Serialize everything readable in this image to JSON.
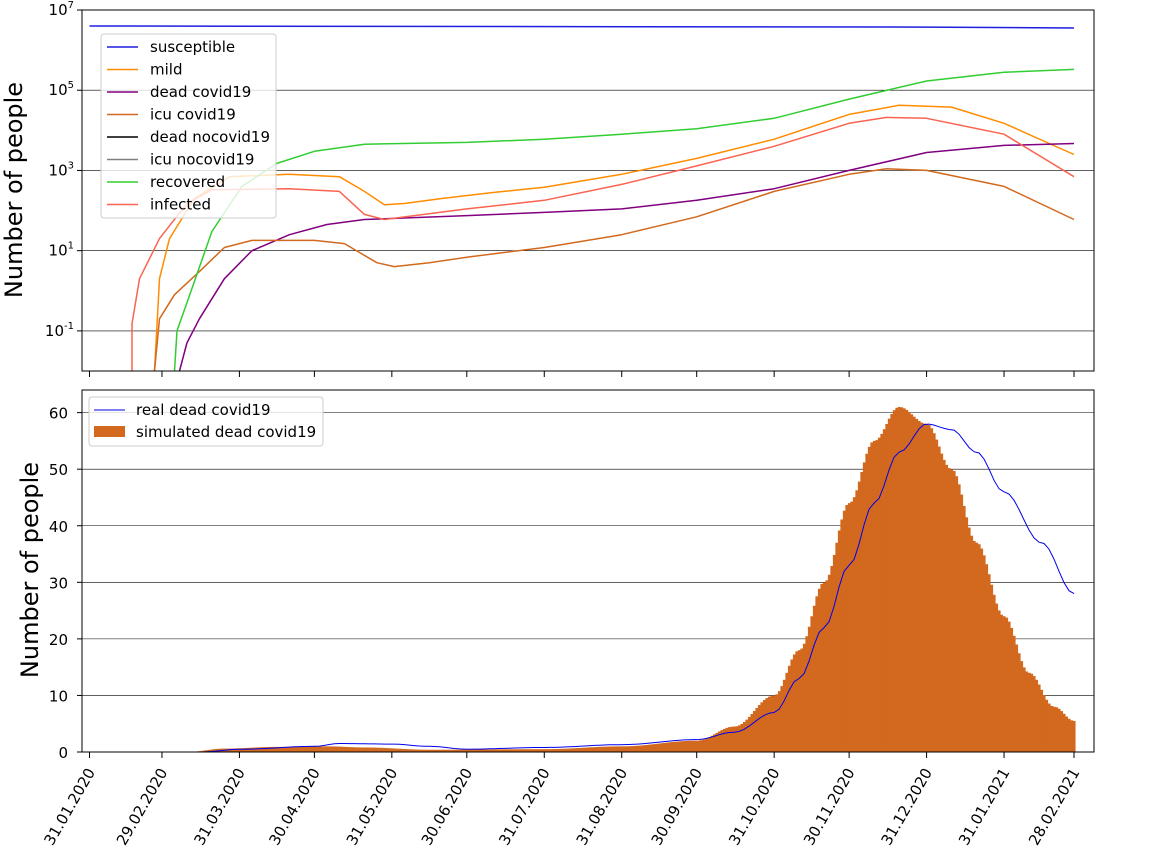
{
  "chart_data": [
    {
      "type": "line",
      "ylabel": "Number of people",
      "yscale": "log",
      "ylim": [
        0.01,
        10000000
      ],
      "xlim": [
        "2020-01-28",
        "2021-03-08"
      ],
      "grid": "y-major",
      "legend_position": "upper-left",
      "y_tick_labels": [
        "10^-1",
        "10^1",
        "10^3",
        "10^5",
        "10^7"
      ],
      "series": [
        {
          "name": "susceptible",
          "color": "#1f1fe0",
          "points": [
            [
              "2020-01-31",
              4000000
            ],
            [
              "2020-12-31",
              3750000
            ],
            [
              "2021-02-28",
              3550000
            ]
          ]
        },
        {
          "name": "mild",
          "color": "#ff8c00",
          "points": [
            [
              "2020-02-26",
              0.01
            ],
            [
              "2020-02-28",
              2
            ],
            [
              "2020-03-03",
              20
            ],
            [
              "2020-03-13",
              200
            ],
            [
              "2020-03-27",
              700
            ],
            [
              "2020-04-20",
              800
            ],
            [
              "2020-05-10",
              700
            ],
            [
              "2020-05-20",
              300
            ],
            [
              "2020-05-28",
              140
            ],
            [
              "2020-06-05",
              150
            ],
            [
              "2020-06-20",
              200
            ],
            [
              "2020-07-10",
              280
            ],
            [
              "2020-07-31",
              380
            ],
            [
              "2020-08-31",
              800
            ],
            [
              "2020-09-30",
              2000
            ],
            [
              "2020-10-31",
              6000
            ],
            [
              "2020-11-30",
              25000
            ],
            [
              "2020-12-20",
              42000
            ],
            [
              "2021-01-10",
              38000
            ],
            [
              "2021-01-31",
              15000
            ],
            [
              "2021-02-28",
              2500
            ]
          ]
        },
        {
          "name": "dead covid19",
          "color": "#800080",
          "points": [
            [
              "2020-03-07",
              0.01
            ],
            [
              "2020-03-10",
              0.05
            ],
            [
              "2020-03-15",
              0.2
            ],
            [
              "2020-03-25",
              2
            ],
            [
              "2020-04-05",
              10
            ],
            [
              "2020-04-20",
              25
            ],
            [
              "2020-05-05",
              45
            ],
            [
              "2020-05-20",
              60
            ],
            [
              "2020-06-30",
              75
            ],
            [
              "2020-07-31",
              90
            ],
            [
              "2020-08-31",
              110
            ],
            [
              "2020-09-30",
              180
            ],
            [
              "2020-10-31",
              350
            ],
            [
              "2020-11-30",
              1000
            ],
            [
              "2020-12-31",
              2800
            ],
            [
              "2021-01-31",
              4200
            ],
            [
              "2021-02-28",
              4700
            ]
          ]
        },
        {
          "name": "icu covid19",
          "color": "#d2691e",
          "points": [
            [
              "2020-02-26",
              0.01
            ],
            [
              "2020-02-28",
              0.2
            ],
            [
              "2020-03-05",
              0.8
            ],
            [
              "2020-03-15",
              3
            ],
            [
              "2020-03-25",
              12
            ],
            [
              "2020-04-05",
              18
            ],
            [
              "2020-04-30",
              18
            ],
            [
              "2020-05-12",
              15
            ],
            [
              "2020-05-25",
              5
            ],
            [
              "2020-06-01",
              4
            ],
            [
              "2020-06-15",
              5
            ],
            [
              "2020-07-01",
              7
            ],
            [
              "2020-07-31",
              12
            ],
            [
              "2020-08-31",
              25
            ],
            [
              "2020-09-30",
              70
            ],
            [
              "2020-10-31",
              300
            ],
            [
              "2020-11-30",
              800
            ],
            [
              "2020-12-15",
              1100
            ],
            [
              "2020-12-31",
              1000
            ],
            [
              "2021-01-31",
              400
            ],
            [
              "2021-02-28",
              60
            ]
          ]
        },
        {
          "name": "dead nocovid19",
          "color": "#000000",
          "points": []
        },
        {
          "name": "icu nocovid19",
          "color": "#808080",
          "points": []
        },
        {
          "name": "recovered",
          "color": "#32cd32",
          "points": [
            [
              "2020-03-05",
              0.01
            ],
            [
              "2020-03-06",
              0.1
            ],
            [
              "2020-03-10",
              0.5
            ],
            [
              "2020-03-20",
              30
            ],
            [
              "2020-04-01",
              400
            ],
            [
              "2020-04-15",
              1500
            ],
            [
              "2020-04-30",
              3000
            ],
            [
              "2020-05-20",
              4500
            ],
            [
              "2020-06-30",
              5000
            ],
            [
              "2020-07-31",
              6000
            ],
            [
              "2020-08-31",
              8000
            ],
            [
              "2020-09-30",
              11000
            ],
            [
              "2020-10-31",
              20000
            ],
            [
              "2020-11-30",
              60000
            ],
            [
              "2020-12-31",
              170000
            ],
            [
              "2021-01-31",
              280000
            ],
            [
              "2021-02-28",
              330000
            ]
          ]
        },
        {
          "name": "infected",
          "color": "#fa6450",
          "points": [
            [
              "2020-02-17",
              0.01
            ],
            [
              "2020-02-17",
              0.15
            ],
            [
              "2020-02-20",
              2
            ],
            [
              "2020-02-28",
              20
            ],
            [
              "2020-03-10",
              150
            ],
            [
              "2020-03-20",
              330
            ],
            [
              "2020-04-20",
              350
            ],
            [
              "2020-05-10",
              300
            ],
            [
              "2020-05-20",
              80
            ],
            [
              "2020-05-28",
              60
            ],
            [
              "2020-06-30",
              110
            ],
            [
              "2020-07-31",
              180
            ],
            [
              "2020-08-31",
              450
            ],
            [
              "2020-09-30",
              1300
            ],
            [
              "2020-10-31",
              4000
            ],
            [
              "2020-11-30",
              15000
            ],
            [
              "2020-12-15",
              21000
            ],
            [
              "2020-12-31",
              20000
            ],
            [
              "2021-01-31",
              8000
            ],
            [
              "2021-02-28",
              700
            ]
          ]
        }
      ]
    },
    {
      "type": "bar",
      "ylabel": "Number of people",
      "ylim": [
        0,
        64
      ],
      "xlim": [
        "2020-01-28",
        "2021-03-08"
      ],
      "y_ticks": [
        0,
        10,
        20,
        30,
        40,
        50,
        60
      ],
      "grid": "y-major",
      "legend_position": "upper-left",
      "x_tick_labels": [
        "31.01.2020",
        "29.02.2020",
        "31.03.2020",
        "30.04.2020",
        "31.05.2020",
        "30.06.2020",
        "31.07.2020",
        "31.08.2020",
        "30.09.2020",
        "31.10.2020",
        "30.11.2020",
        "31.12.2020",
        "31.01.2021",
        "28.02.2021"
      ],
      "series": [
        {
          "name": "real dead covid19",
          "type": "line",
          "color": "#0000ee",
          "points": [
            [
              "2020-01-31",
              0
            ],
            [
              "2020-03-15",
              0
            ],
            [
              "2020-04-01",
              0.5
            ],
            [
              "2020-04-30",
              1
            ],
            [
              "2020-05-10",
              1.5
            ],
            [
              "2020-05-31",
              1.4
            ],
            [
              "2020-06-15",
              1
            ],
            [
              "2020-06-30",
              0.5
            ],
            [
              "2020-07-31",
              0.8
            ],
            [
              "2020-08-31",
              1.3
            ],
            [
              "2020-09-30",
              2.2
            ],
            [
              "2020-10-15",
              3.5
            ],
            [
              "2020-10-31",
              7
            ],
            [
              "2020-11-10",
              13
            ],
            [
              "2020-11-20",
              22
            ],
            [
              "2020-11-30",
              33
            ],
            [
              "2020-12-10",
              44
            ],
            [
              "2020-12-20",
              53
            ],
            [
              "2020-12-31",
              58
            ],
            [
              "2021-01-10",
              57
            ],
            [
              "2021-01-20",
              53
            ],
            [
              "2021-01-31",
              46
            ],
            [
              "2021-02-15",
              37
            ],
            [
              "2021-02-28",
              28
            ]
          ]
        },
        {
          "name": "simulated dead covid19",
          "type": "bar",
          "color": "#d2691e",
          "points": [
            [
              "2020-01-31",
              0
            ],
            [
              "2020-03-10",
              0
            ],
            [
              "2020-03-25",
              0.6
            ],
            [
              "2020-04-15",
              0.9
            ],
            [
              "2020-05-05",
              1.0
            ],
            [
              "2020-05-20",
              0.8
            ],
            [
              "2020-06-15",
              0.4
            ],
            [
              "2020-07-31",
              0.5
            ],
            [
              "2020-08-31",
              1.0
            ],
            [
              "2020-09-30",
              2.0
            ],
            [
              "2020-10-15",
              4.5
            ],
            [
              "2020-10-31",
              10
            ],
            [
              "2020-11-10",
              18
            ],
            [
              "2020-11-20",
              30
            ],
            [
              "2020-11-30",
              44
            ],
            [
              "2020-12-10",
              55
            ],
            [
              "2020-12-20",
              61
            ],
            [
              "2020-12-31",
              58
            ],
            [
              "2021-01-10",
              50
            ],
            [
              "2021-01-20",
              37
            ],
            [
              "2021-01-31",
              24
            ],
            [
              "2021-02-10",
              14
            ],
            [
              "2021-02-20",
              8
            ],
            [
              "2021-02-28",
              5.5
            ]
          ]
        }
      ]
    }
  ]
}
